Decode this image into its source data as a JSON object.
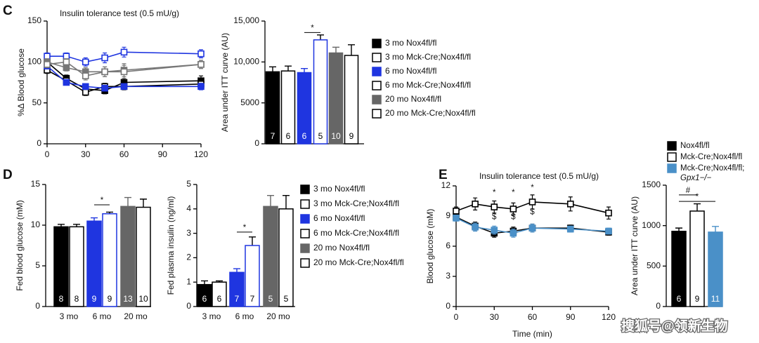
{
  "panels": [
    "C",
    "D",
    "E"
  ],
  "watermark": "搜狐号@领新生物",
  "legends": {
    "C": [
      {
        "name": "3 mo Nox4fl/fl",
        "color": "#000000",
        "filled": true
      },
      {
        "name": "3 mo Mck-Cre;Nox4fl/fl",
        "color": "#000000",
        "filled": false
      },
      {
        "name": "6 mo Nox4fl/fl",
        "color": "#1f35e0",
        "filled": true
      },
      {
        "name": "6 mo Mck-Cre;Nox4fl/fl",
        "color": "#1f35e0",
        "filled": false
      },
      {
        "name": "20 mo Nox4fl/fl",
        "color": "#666666",
        "filled": true
      },
      {
        "name": "20 mo Mck-Cre;Nox4fl/fl",
        "color": "#666666",
        "filled": false
      }
    ],
    "D": [
      {
        "name": "3 mo Nox4fl/fl",
        "color": "#000000",
        "filled": true
      },
      {
        "name": "3 mo Mck-Cre;Nox4fl/fl",
        "color": "#000000",
        "filled": false
      },
      {
        "name": "6 mo Nox4fl/fl",
        "color": "#1f35e0",
        "filled": true
      },
      {
        "name": "6 mo Mck-Cre;Nox4fl/fl",
        "color": "#1f35e0",
        "filled": false
      },
      {
        "name": "20 mo Nox4fl/fl",
        "color": "#666666",
        "filled": true
      },
      {
        "name": "20 mo Mck-Cre;Nox4fl/fl",
        "color": "#666666",
        "filled": false
      }
    ],
    "E": [
      {
        "name": "Nox4fl/fl",
        "color": "#000000",
        "filled": true
      },
      {
        "name": "Mck-Cre;Nox4fl/fl",
        "color": "#000000",
        "filled": false
      },
      {
        "name": "Mck-Cre;Nox4fl/fl;",
        "name2": "Gpx1−/−",
        "color": "#4a90c8",
        "filled": true
      }
    ]
  },
  "chart_data": [
    {
      "type": "line",
      "title": "Insulin tolerance test (0.5 mU/g)",
      "ylabel": "%Δ Blood glucose",
      "x": [
        0,
        15,
        30,
        45,
        60,
        120
      ],
      "xlim": [
        0,
        120
      ],
      "xticks": [
        0,
        30,
        60,
        90,
        120
      ],
      "ylim": [
        0,
        150
      ],
      "yticks": [
        0,
        50,
        100,
        150
      ],
      "series": [
        {
          "name": "3 mo Nox4fl/fl",
          "color": "#000000",
          "filled": true,
          "values": [
            100,
            80,
            67,
            65,
            75,
            77
          ],
          "errors": [
            4,
            4,
            4,
            4,
            5,
            6
          ]
        },
        {
          "name": "3 mo Mck-Cre;Nox4fl/fl",
          "color": "#000000",
          "filled": false,
          "values": [
            90,
            77,
            63,
            70,
            70,
            73
          ],
          "errors": [
            4,
            4,
            4,
            4,
            4,
            5
          ]
        },
        {
          "name": "6 mo Nox4fl/fl",
          "color": "#1f35e0",
          "filled": true,
          "values": [
            95,
            75,
            70,
            68,
            70,
            70
          ],
          "errors": [
            3,
            3,
            3,
            3,
            3,
            4
          ]
        },
        {
          "name": "6 mo Mck-Cre;Nox4fl/fl",
          "color": "#1f35e0",
          "filled": false,
          "values": [
            107,
            107,
            100,
            105,
            112,
            110
          ],
          "errors": [
            4,
            4,
            5,
            6,
            6,
            5
          ]
        },
        {
          "name": "20 mo Nox4fl/fl",
          "color": "#777777",
          "filled": true,
          "values": [
            100,
            93,
            88,
            88,
            90,
            97
          ],
          "errors": [
            4,
            4,
            5,
            6,
            8,
            5
          ]
        },
        {
          "name": "20 mo Mck-Cre;Nox4fl/fl",
          "color": "#777777",
          "filled": false,
          "values": [
            97,
            100,
            83,
            88,
            88,
            97
          ],
          "errors": [
            4,
            4,
            5,
            6,
            8,
            5
          ]
        }
      ]
    },
    {
      "type": "bar",
      "ylabel": "Area under ITT curve (AU)",
      "ylim": [
        0,
        15000
      ],
      "yticks": [
        0,
        5000,
        {
          "value": 10000,
          "label": "10,000"
        },
        {
          "value": 15000,
          "label": "15,000"
        }
      ],
      "values": [
        8800,
        8900,
        8700,
        12700,
        11100,
        10800
      ],
      "errors": [
        600,
        600,
        500,
        600,
        700,
        1300
      ],
      "colors": [
        "#000000",
        "#000000",
        "#1f35e0",
        "#1f35e0",
        "#666666",
        "#666666"
      ],
      "filled": [
        true,
        false,
        true,
        false,
        true,
        false
      ],
      "n_labels": [
        7,
        6,
        6,
        5,
        10,
        9
      ],
      "annotations": [
        "*"
      ]
    },
    {
      "type": "bar",
      "ylabel": "Fed blood glucose (mM)",
      "groups": [
        "3 mo",
        "6 mo",
        "20 mo"
      ],
      "ylim": [
        0,
        15
      ],
      "yticks": [
        0,
        5,
        10,
        15
      ],
      "values": [
        9.8,
        9.8,
        10.5,
        11.4,
        12.3,
        12.2
      ],
      "errors": [
        0.3,
        0.3,
        0.4,
        0.2,
        1.1,
        1.0
      ],
      "colors": [
        "#000000",
        "#000000",
        "#1f35e0",
        "#1f35e0",
        "#666666",
        "#666666"
      ],
      "filled": [
        true,
        false,
        true,
        false,
        true,
        false
      ],
      "n_labels": [
        8,
        8,
        9,
        9,
        13,
        10
      ],
      "annotations": [
        "*"
      ]
    },
    {
      "type": "bar",
      "ylabel": "Fed plasma insulin (ng/ml)",
      "groups": [
        "3 mo",
        "6 mo",
        "20 mo"
      ],
      "ylim": [
        0,
        5
      ],
      "yticks": [
        0,
        1,
        2,
        3,
        4,
        5
      ],
      "values": [
        0.9,
        1.0,
        1.4,
        2.5,
        4.1,
        4.0
      ],
      "errors": [
        0.15,
        0.05,
        0.15,
        0.35,
        0.45,
        0.55
      ],
      "colors": [
        "#000000",
        "#000000",
        "#1f35e0",
        "#1f35e0",
        "#666666",
        "#666666"
      ],
      "filled": [
        true,
        false,
        true,
        false,
        true,
        false
      ],
      "n_labels": [
        6,
        6,
        7,
        7,
        5,
        5
      ],
      "annotations": [
        "*"
      ]
    },
    {
      "type": "line",
      "title": "Insulin tolerance test (0.5 mU/g)",
      "ylabel": "Blood glucose (mM)",
      "xlabel": "Time (min)",
      "x": [
        0,
        15,
        30,
        45,
        60,
        90,
        120
      ],
      "xlim": [
        0,
        120
      ],
      "xticks": [
        0,
        30,
        60,
        90,
        120
      ],
      "ylim": [
        0,
        12
      ],
      "yticks": [
        0,
        3,
        6,
        9,
        12
      ],
      "series": [
        {
          "name": "Nox4fl/fl",
          "color": "#000000",
          "filled": true,
          "values": [
            8.9,
            8.0,
            7.3,
            7.5,
            7.8,
            7.8,
            7.4
          ],
          "errors": [
            0.3,
            0.4,
            0.4,
            0.4,
            0.4,
            0.3,
            0.3
          ]
        },
        {
          "name": "Mck-Cre;Nox4fl/fl",
          "color": "#000000",
          "filled": false,
          "values": [
            9.5,
            10.2,
            9.9,
            9.7,
            10.4,
            10.2,
            9.3
          ],
          "errors": [
            0.4,
            0.6,
            0.6,
            0.6,
            0.7,
            0.7,
            0.6
          ]
        },
        {
          "name": "Mck-Cre;Nox4fl/fl; Gpx1−/−",
          "color": "#4a90c8",
          "filled": true,
          "values": [
            8.8,
            7.9,
            7.6,
            7.3,
            7.8,
            7.7,
            7.5
          ],
          "errors": [
            0.3,
            0.4,
            0.4,
            0.4,
            0.4,
            0.3,
            0.3
          ]
        }
      ],
      "annotations": [
        "*",
        "*",
        "*",
        "$",
        "$",
        "$"
      ]
    },
    {
      "type": "bar",
      "ylabel": "Area under ITT curve (AU)",
      "ylim": [
        0,
        1500
      ],
      "yticks": [
        0,
        500,
        1000,
        1500
      ],
      "values": [
        930,
        1180,
        920
      ],
      "errors": [
        40,
        90,
        70
      ],
      "colors": [
        "#000000",
        "#000000",
        "#4a90c8"
      ],
      "filled": [
        true,
        false,
        true
      ],
      "n_labels": [
        6,
        9,
        11
      ],
      "annotations": [
        "#",
        "*"
      ]
    }
  ]
}
